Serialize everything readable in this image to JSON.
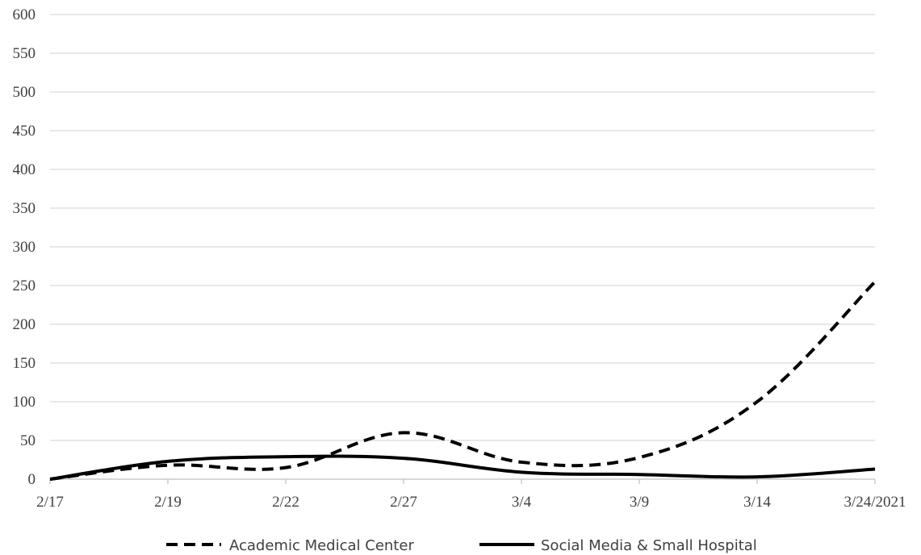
{
  "chart_data": {
    "type": "line",
    "title": "",
    "xlabel": "",
    "ylabel": "",
    "ylim": [
      0,
      600
    ],
    "yticks": [
      0,
      50,
      100,
      150,
      200,
      250,
      300,
      350,
      400,
      450,
      500,
      550,
      600
    ],
    "categories": [
      "2/17",
      "2/19",
      "2/22",
      "2/27",
      "3/4",
      "3/9",
      "3/14",
      "3/24/2021"
    ],
    "series": [
      {
        "name": "Academic Medical Center",
        "style": "dashed",
        "color": "#000000",
        "values": [
          0,
          18,
          15,
          60,
          22,
          28,
          100,
          255
        ]
      },
      {
        "name": "Social Media & Small Hospital",
        "style": "solid",
        "color": "#000000",
        "values": [
          0,
          23,
          29,
          27,
          9,
          6,
          3,
          13
        ]
      }
    ],
    "grid": true,
    "legend_position": "bottom"
  }
}
